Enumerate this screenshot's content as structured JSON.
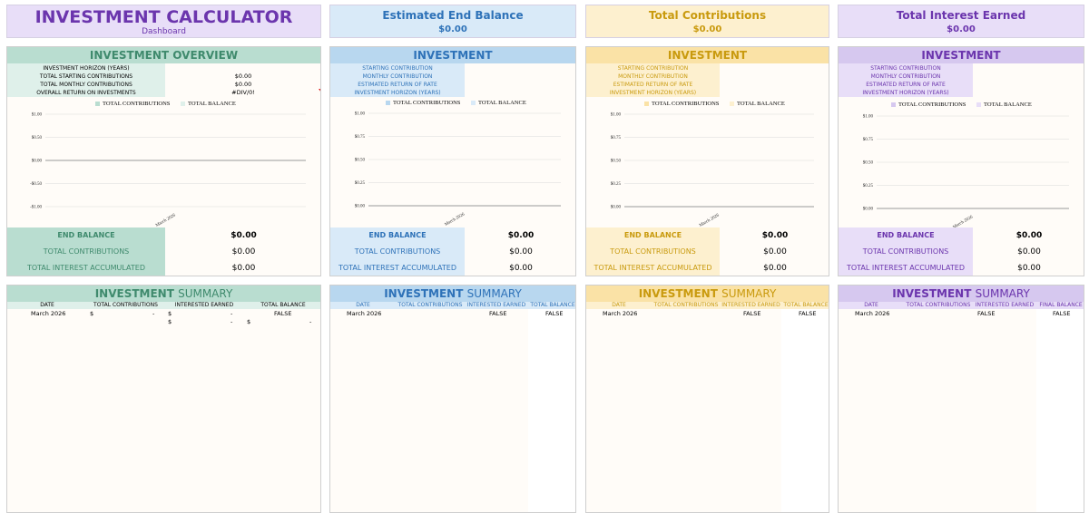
{
  "header": {
    "title": "INVESTMENT CALCULATOR",
    "subtitle": "Dashboard",
    "cards": [
      {
        "label": "Estimated End Balance",
        "value": "$0.00"
      },
      {
        "label": "Total Contributions",
        "value": "$0.00"
      },
      {
        "label": "Total Interest Earned",
        "value": "$0.00"
      }
    ]
  },
  "overview": {
    "title": "INVESTMENT OVERVIEW",
    "rows": [
      {
        "label": "INVESTMENT HORIZON (YEARS)",
        "value": ""
      },
      {
        "label": "TOTAL STARTING CONTRIBUTIONS",
        "value": "$0.00"
      },
      {
        "label": "TOTAL MONTHLY CONTRIBUTIONS",
        "value": "$0.00"
      },
      {
        "label": "OVERALL RETURN ON INVESTMENTS",
        "value": "#DIV/0!"
      }
    ],
    "legend": [
      "TOTAL CONTRIBUTIONS",
      "TOTAL BALANCE"
    ],
    "chart_data": {
      "type": "line",
      "categories": [
        "March 2026"
      ],
      "series": [
        {
          "name": "TOTAL CONTRIBUTIONS",
          "values": [
            0
          ]
        },
        {
          "name": "TOTAL BALANCE",
          "values": [
            0
          ]
        }
      ],
      "yticks": [
        "$1.00",
        "$0.50",
        "$0.00",
        "-$0.50",
        "-$1.00"
      ],
      "ylim": [
        -1,
        1
      ]
    },
    "balance_rows": [
      {
        "label": "END BALANCE",
        "value": "$0.00"
      },
      {
        "label": "TOTAL CONTRIBUTIONS",
        "value": "$0.00"
      },
      {
        "label": "TOTAL INTEREST ACCUMULATED",
        "value": "$0.00"
      }
    ]
  },
  "investments": [
    {
      "title": "INVESTMENT",
      "rows": [
        "STARTING CONTRIBUTION",
        "MONTHLY CONTRIBUTION",
        "ESTIMATED RETURN OF RATE",
        "INVESTMENT HORIZON (YEARS)"
      ],
      "legend": [
        "TOTAL CONTRIBUTIONS",
        "TOTAL BALANCE"
      ],
      "chart_data": {
        "type": "line",
        "categories": [
          "March 2026"
        ],
        "series": [
          {
            "name": "TOTAL CONTRIBUTIONS",
            "values": [
              0
            ]
          },
          {
            "name": "TOTAL BALANCE",
            "values": [
              0
            ]
          }
        ],
        "yticks": [
          "$1.00",
          "$0.75",
          "$0.50",
          "$0.25",
          "$0.00"
        ],
        "ylim": [
          0,
          1
        ]
      },
      "balance_rows": [
        {
          "label": "END BALANCE",
          "value": "$0.00"
        },
        {
          "label": "TOTAL CONTRIBUTIONS",
          "value": "$0.00"
        },
        {
          "label": "TOTAL INTEREST ACCUMULATED",
          "value": "$0.00"
        }
      ]
    },
    {
      "title": "INVESTMENT",
      "rows": [
        "STARTING CONTRIBUTION",
        "MONTHLY CONTRIBUTION",
        "ESTIMATED RETURN OF RATE",
        "INVESTMENT HORIZON (YEARS)"
      ],
      "legend": [
        "TOTAL CONTRIBUTIONS",
        "TOTAL BALANCE"
      ],
      "chart_data": {
        "type": "line",
        "categories": [
          "March 2026"
        ],
        "series": [
          {
            "name": "TOTAL CONTRIBUTIONS",
            "values": [
              0
            ]
          },
          {
            "name": "TOTAL BALANCE",
            "values": [
              0
            ]
          }
        ],
        "yticks": [
          "$1.00",
          "$0.75",
          "$0.50",
          "$0.25",
          "$0.00"
        ],
        "ylim": [
          0,
          1
        ]
      },
      "balance_rows": [
        {
          "label": "END BALANCE",
          "value": "$0.00"
        },
        {
          "label": "TOTAL CONTRIBUTIONS",
          "value": "$0.00"
        },
        {
          "label": "TOTAL INTEREST ACCUMULATED",
          "value": "$0.00"
        }
      ]
    },
    {
      "title": "INVESTMENT",
      "rows": [
        "STARTING CONTRIBUTION",
        "MONTHLY CONTRIBUTION",
        "ESTIMATED RETURN OF RATE",
        "INVESTMENT HORIZON (YEARS)"
      ],
      "legend": [
        "TOTAL CONTRIBUTIONS",
        "TOTAL BALANCE"
      ],
      "chart_data": {
        "type": "line",
        "categories": [
          "March 2026"
        ],
        "series": [
          {
            "name": "TOTAL CONTRIBUTIONS",
            "values": [
              0
            ]
          },
          {
            "name": "TOTAL BALANCE",
            "values": [
              0
            ]
          }
        ],
        "yticks": [
          "$1.00",
          "$0.75",
          "$0.50",
          "$0.25",
          "$0.00"
        ],
        "ylim": [
          0,
          1
        ]
      },
      "balance_rows": [
        {
          "label": "END BALANCE",
          "value": "$0.00"
        },
        {
          "label": "TOTAL CONTRIBUTIONS",
          "value": "$0.00"
        },
        {
          "label": "TOTAL INTEREST ACCUMULATED",
          "value": "$0.00"
        }
      ]
    }
  ],
  "summaries": [
    {
      "title_bold": "INVESTMENT",
      "title_light": "SUMMARY",
      "columns": [
        "DATE",
        "TOTAL CONTRIBUTIONS",
        "INTERESTED EARNED",
        "TOTAL BALANCE"
      ],
      "row1": {
        "date": "March 2026",
        "dollar1": "$",
        "dash1": "-",
        "dollar2": "$",
        "dash2": "-",
        "bal": "FALSE"
      },
      "row2": {
        "dollar1": "$",
        "dash1": "-",
        "dollar2": "$",
        "dash2": "-"
      }
    },
    {
      "title_bold": "INVESTMENT",
      "title_light": "SUMMARY",
      "columns": [
        "DATE",
        "TOTAL CONTRIBUTIONS",
        "INTERESTED EARNED",
        "TOTAL BALANCE"
      ],
      "row1": {
        "date": "March 2026",
        "interest": "FALSE",
        "bal": "FALSE"
      }
    },
    {
      "title_bold": "INVESTMENT",
      "title_light": "SUMMARY",
      "columns": [
        "DATE",
        "TOTAL CONTRIBUTIONS",
        "INTERESTED EARNED",
        "TOTAL BALANCE"
      ],
      "row1": {
        "date": "March 2026",
        "interest": "FALSE",
        "bal": "FALSE"
      }
    },
    {
      "title_bold": "INVESTMENT",
      "title_light": "SUMMARY",
      "columns": [
        "DATE",
        "TOTAL CONTRIBUTIONS",
        "INTERESTED EARNED",
        "FINAL BALANCE"
      ],
      "row1": {
        "date": "March 2026",
        "interest": "FALSE",
        "bal": "FALSE"
      }
    }
  ],
  "colors": {
    "green": "#b9ddd0",
    "green_light": "#dff0ea",
    "green_text": "#3f8a6d",
    "blue": "#b8d7ef",
    "blue_light": "#d9eaf8",
    "blue_text": "#2e72b8",
    "yellow": "#fae2a6",
    "yellow_light": "#fdf0cf",
    "yellow_text": "#c99a0e",
    "purple": "#d6c8ef",
    "purple_light": "#e8def8",
    "purple_text": "#6b35ad"
  }
}
